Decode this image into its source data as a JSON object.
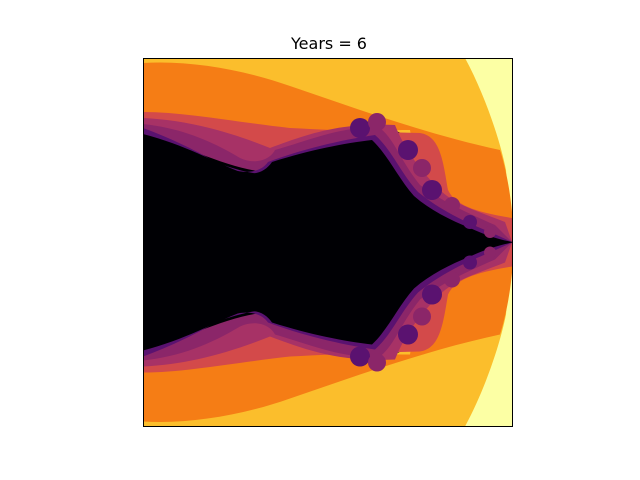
{
  "chart_data": {
    "type": "heatmap",
    "title": "Years = 6",
    "xlabel": "",
    "ylabel": "",
    "axes_ticks": "none",
    "grid": false,
    "legend": "none",
    "colormap": "inferno",
    "colors": {
      "black": "#000004",
      "deep_purple": "#5a1270",
      "purple": "#8b2669",
      "magenta": "#a73266",
      "red": "#d34a4a",
      "orange": "#f57d15",
      "amber": "#fbbe2c",
      "pale_yellow": "#fcffa4"
    }
  }
}
